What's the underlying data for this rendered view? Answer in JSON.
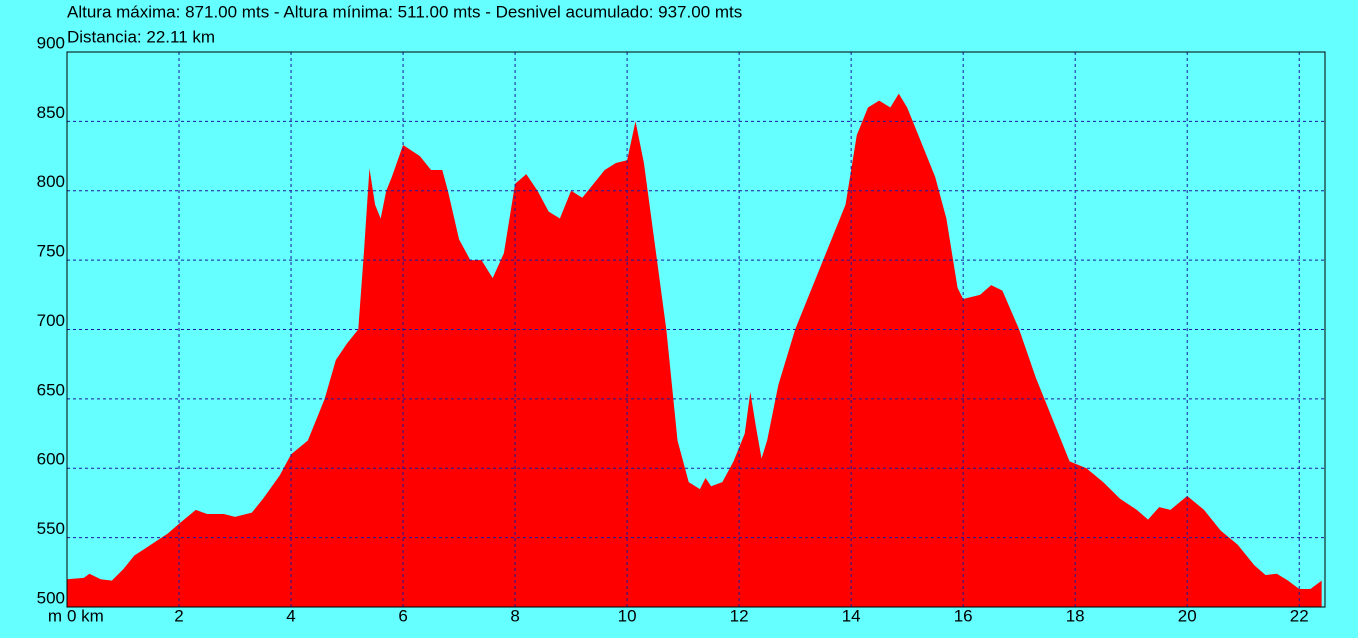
{
  "chart_data": {
    "type": "area",
    "title": "Altura máxima: 871.00 mts - Altura mínima: 511.00 mts - Desnivel acumulado: 937.00 mts",
    "subtitle": "Distancia: 22.11 km",
    "y_unit": "m",
    "color": "#ff0000",
    "background": "#66ffff",
    "grid": true,
    "grid_color": "#1a1aa0",
    "xlim": [
      0,
      22.46
    ],
    "ylim": [
      500,
      900
    ],
    "xticks": [
      {
        "value": 0,
        "label": "0 km"
      },
      2,
      4,
      6,
      8,
      10,
      12,
      14,
      16,
      18,
      20,
      22
    ],
    "yticks": [
      500,
      550,
      600,
      650,
      700,
      750,
      800,
      850,
      900
    ],
    "x": [
      0,
      0.3,
      0.4,
      0.6,
      0.8,
      1.0,
      1.2,
      1.5,
      1.8,
      2.0,
      2.3,
      2.5,
      2.8,
      3.0,
      3.3,
      3.5,
      3.8,
      4.0,
      4.3,
      4.6,
      4.8,
      5.0,
      5.2,
      5.3,
      5.4,
      5.5,
      5.6,
      5.7,
      5.8,
      6.0,
      6.3,
      6.5,
      6.7,
      6.8,
      7.0,
      7.2,
      7.4,
      7.6,
      7.8,
      8.0,
      8.2,
      8.4,
      8.6,
      8.8,
      9.0,
      9.2,
      9.4,
      9.6,
      9.8,
      10.0,
      10.15,
      10.3,
      10.5,
      10.7,
      10.9,
      11.1,
      11.3,
      11.4,
      11.5,
      11.7,
      11.9,
      12.1,
      12.2,
      12.3,
      12.4,
      12.5,
      12.7,
      13.0,
      13.3,
      13.6,
      13.9,
      14.1,
      14.3,
      14.5,
      14.7,
      14.85,
      15.0,
      15.3,
      15.5,
      15.7,
      15.9,
      16.0,
      16.3,
      16.5,
      16.7,
      17.0,
      17.3,
      17.6,
      17.9,
      18.2,
      18.5,
      18.8,
      19.1,
      19.3,
      19.5,
      19.7,
      20.0,
      20.3,
      20.6,
      20.9,
      21.2,
      21.4,
      21.6,
      21.8,
      22.0,
      22.2,
      22.4
    ],
    "values": [
      520,
      521,
      524,
      520,
      519,
      527,
      537,
      545,
      553,
      560,
      570,
      567,
      567,
      565,
      568,
      578,
      595,
      610,
      620,
      650,
      678,
      690,
      700,
      755,
      816,
      790,
      780,
      800,
      810,
      833,
      825,
      815,
      815,
      800,
      765,
      750,
      750,
      737,
      755,
      805,
      812,
      800,
      785,
      780,
      800,
      795,
      805,
      815,
      820,
      822,
      850,
      820,
      760,
      700,
      620,
      590,
      585,
      593,
      587,
      590,
      605,
      625,
      655,
      630,
      607,
      620,
      660,
      700,
      730,
      760,
      790,
      840,
      860,
      865,
      860,
      870,
      860,
      830,
      810,
      780,
      730,
      722,
      725,
      732,
      728,
      700,
      665,
      635,
      605,
      600,
      590,
      578,
      570,
      563,
      572,
      570,
      580,
      570,
      555,
      545,
      530,
      523,
      524,
      519,
      513,
      513,
      519
    ]
  }
}
